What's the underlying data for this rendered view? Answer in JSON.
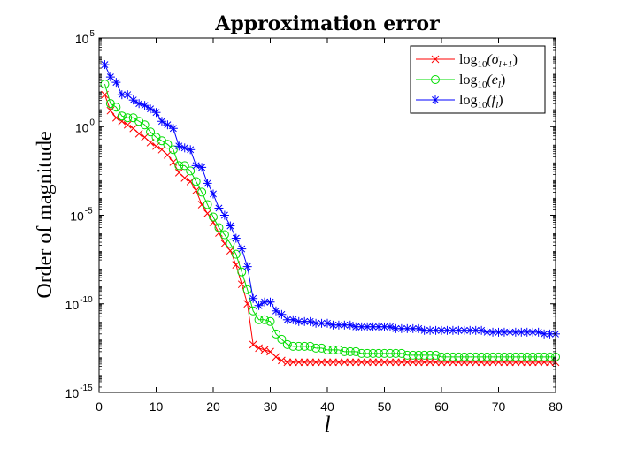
{
  "chart_data": {
    "type": "line",
    "title": "Approximation error",
    "xlabel": "l",
    "ylabel": "Order of magnitude",
    "xlim": [
      0,
      80
    ],
    "ylim_log10": [
      -15,
      5
    ],
    "yscale": "log",
    "xticks": [
      0,
      10,
      20,
      30,
      40,
      50,
      60,
      70,
      80
    ],
    "xtick_labels": [
      "0",
      "10",
      "20",
      "30",
      "40",
      "50",
      "60",
      "70",
      "80"
    ],
    "yticks_log10": [
      -15,
      -10,
      -5,
      0,
      5
    ],
    "ytick_labels": [
      {
        "base": "10",
        "exp": "-15"
      },
      {
        "base": "10",
        "exp": "-10"
      },
      {
        "base": "10",
        "exp": "-5"
      },
      {
        "base": "10",
        "exp": "0"
      },
      {
        "base": "10",
        "exp": "5"
      }
    ],
    "grid": false,
    "legend_position": "top-right",
    "x": [
      1,
      2,
      3,
      4,
      5,
      6,
      7,
      8,
      9,
      10,
      11,
      12,
      13,
      14,
      15,
      16,
      17,
      18,
      19,
      20,
      21,
      22,
      23,
      24,
      25,
      26,
      27,
      28,
      29,
      30,
      31,
      32,
      33,
      34,
      35,
      36,
      37,
      38,
      39,
      40,
      41,
      42,
      43,
      44,
      45,
      46,
      47,
      48,
      49,
      50,
      51,
      52,
      53,
      54,
      55,
      56,
      57,
      58,
      59,
      60,
      61,
      62,
      63,
      64,
      65,
      66,
      67,
      68,
      69,
      70,
      71,
      72,
      73,
      74,
      75,
      76,
      77,
      78,
      79,
      80
    ],
    "series": [
      {
        "name_main": "log",
        "name_sub": "10",
        "name_arg": "(σ",
        "name_arg_sub": "l+1",
        "name_close": ")",
        "color": "#ff0000",
        "marker": "x",
        "values_log10": [
          1.8,
          0.9,
          0.5,
          0.3,
          0.1,
          -0.1,
          -0.4,
          -0.6,
          -0.9,
          -1.1,
          -1.3,
          -1.6,
          -2.0,
          -2.6,
          -2.9,
          -3.1,
          -3.6,
          -4.4,
          -4.9,
          -5.4,
          -6.0,
          -6.6,
          -7.0,
          -7.8,
          -8.9,
          -10.0,
          -12.3,
          -12.5,
          -12.6,
          -12.7,
          -13.0,
          -13.2,
          -13.3,
          -13.3,
          -13.3,
          -13.3,
          -13.3,
          -13.3,
          -13.3,
          -13.3,
          -13.3,
          -13.3,
          -13.3,
          -13.3,
          -13.3,
          -13.3,
          -13.3,
          -13.3,
          -13.3,
          -13.3,
          -13.3,
          -13.3,
          -13.3,
          -13.3,
          -13.3,
          -13.3,
          -13.3,
          -13.3,
          -13.3,
          -13.3,
          -13.3,
          -13.3,
          -13.3,
          -13.3,
          -13.3,
          -13.3,
          -13.3,
          -13.3,
          -13.3,
          -13.3,
          -13.3,
          -13.3,
          -13.3,
          -13.3,
          -13.3,
          -13.3,
          -13.3,
          -13.3,
          -13.3,
          -13.3
        ]
      },
      {
        "name_main": "log",
        "name_sub": "10",
        "name_arg": "(e",
        "name_arg_sub": "l",
        "name_close": ")",
        "color": "#00dd00",
        "marker": "o",
        "values_log10": [
          2.4,
          1.3,
          1.1,
          0.6,
          0.5,
          0.5,
          0.3,
          0.1,
          -0.3,
          -0.6,
          -0.8,
          -1.0,
          -1.3,
          -2.2,
          -2.2,
          -2.5,
          -3.1,
          -3.7,
          -4.4,
          -5.1,
          -5.7,
          -6.1,
          -6.6,
          -7.2,
          -8.2,
          -9.2,
          -10.4,
          -10.9,
          -10.9,
          -11.0,
          -11.7,
          -12.0,
          -12.3,
          -12.4,
          -12.4,
          -12.4,
          -12.4,
          -12.5,
          -12.5,
          -12.6,
          -12.6,
          -12.6,
          -12.7,
          -12.7,
          -12.7,
          -12.8,
          -12.8,
          -12.8,
          -12.8,
          -12.8,
          -12.8,
          -12.8,
          -12.8,
          -12.9,
          -12.9,
          -12.9,
          -12.9,
          -12.9,
          -12.9,
          -13.0,
          -13.0,
          -13.0,
          -13.0,
          -13.0,
          -13.0,
          -13.0,
          -13.0,
          -13.0,
          -13.0,
          -13.0,
          -13.0,
          -13.0,
          -13.0,
          -13.0,
          -13.0,
          -13.0,
          -13.0,
          -13.0,
          -13.0,
          -13.0
        ]
      },
      {
        "name_main": "log",
        "name_sub": "10",
        "name_arg": "(f",
        "name_arg_sub": "l",
        "name_close": ")",
        "color": "#0000ff",
        "marker": "*",
        "values_log10": [
          3.5,
          2.8,
          2.5,
          1.8,
          1.8,
          1.5,
          1.3,
          1.2,
          1.0,
          0.8,
          0.3,
          0.1,
          -0.1,
          -1.1,
          -1.2,
          -1.3,
          -2.2,
          -2.3,
          -3.2,
          -3.8,
          -4.6,
          -5.0,
          -5.6,
          -6.3,
          -6.9,
          -7.9,
          -9.7,
          -10.1,
          -9.9,
          -9.9,
          -10.4,
          -10.6,
          -10.9,
          -10.9,
          -11.0,
          -11.0,
          -11.0,
          -11.1,
          -11.1,
          -11.1,
          -11.2,
          -11.2,
          -11.2,
          -11.2,
          -11.3,
          -11.3,
          -11.3,
          -11.3,
          -11.3,
          -11.3,
          -11.3,
          -11.4,
          -11.4,
          -11.4,
          -11.4,
          -11.4,
          -11.5,
          -11.5,
          -11.5,
          -11.5,
          -11.5,
          -11.5,
          -11.5,
          -11.5,
          -11.5,
          -11.5,
          -11.5,
          -11.6,
          -11.6,
          -11.6,
          -11.6,
          -11.6,
          -11.6,
          -11.6,
          -11.6,
          -11.6,
          -11.6,
          -11.7,
          -11.7,
          -11.7
        ]
      }
    ]
  }
}
